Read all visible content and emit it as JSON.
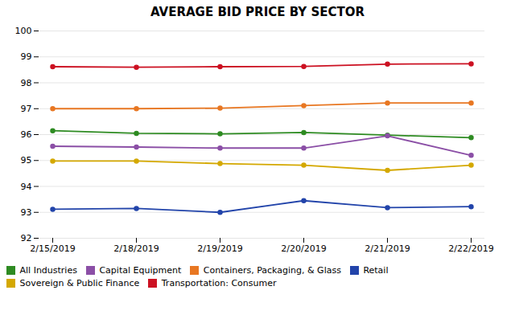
{
  "chart_data": {
    "type": "line",
    "title": "AVERAGE BID PRICE BY SECTOR",
    "categories": [
      "2/15/2019",
      "2/18/2019",
      "2/19/2019",
      "2/20/2019",
      "2/21/2019",
      "2/22/2019"
    ],
    "series": [
      {
        "name": "All Industries",
        "color": "#2E8B22",
        "values": [
          96.15,
          96.05,
          96.03,
          96.08,
          95.98,
          95.88
        ]
      },
      {
        "name": "Capital Equipment",
        "color": "#8B4FA6",
        "values": [
          95.55,
          95.52,
          95.48,
          95.48,
          95.95,
          95.2
        ]
      },
      {
        "name": "Containers, Packaging, & Glass",
        "color": "#E87722",
        "values": [
          97.0,
          97.0,
          97.02,
          97.12,
          97.22,
          97.22
        ]
      },
      {
        "name": "Retail",
        "color": "#2244AA",
        "values": [
          93.12,
          93.15,
          93.0,
          93.45,
          93.18,
          93.22
        ]
      },
      {
        "name": "Sovereign & Public Finance",
        "color": "#D4A800",
        "values": [
          94.98,
          94.98,
          94.88,
          94.82,
          94.62,
          94.82
        ]
      },
      {
        "name": "Transportation: Consumer",
        "color": "#CC1122",
        "values": [
          98.62,
          98.6,
          98.62,
          98.63,
          98.72,
          98.73
        ]
      }
    ],
    "ylim": [
      92,
      100
    ],
    "yticks": [
      92,
      93,
      94,
      95,
      96,
      97,
      98,
      99,
      100
    ],
    "grid": true,
    "legend": "bottom",
    "marker": "circle"
  }
}
